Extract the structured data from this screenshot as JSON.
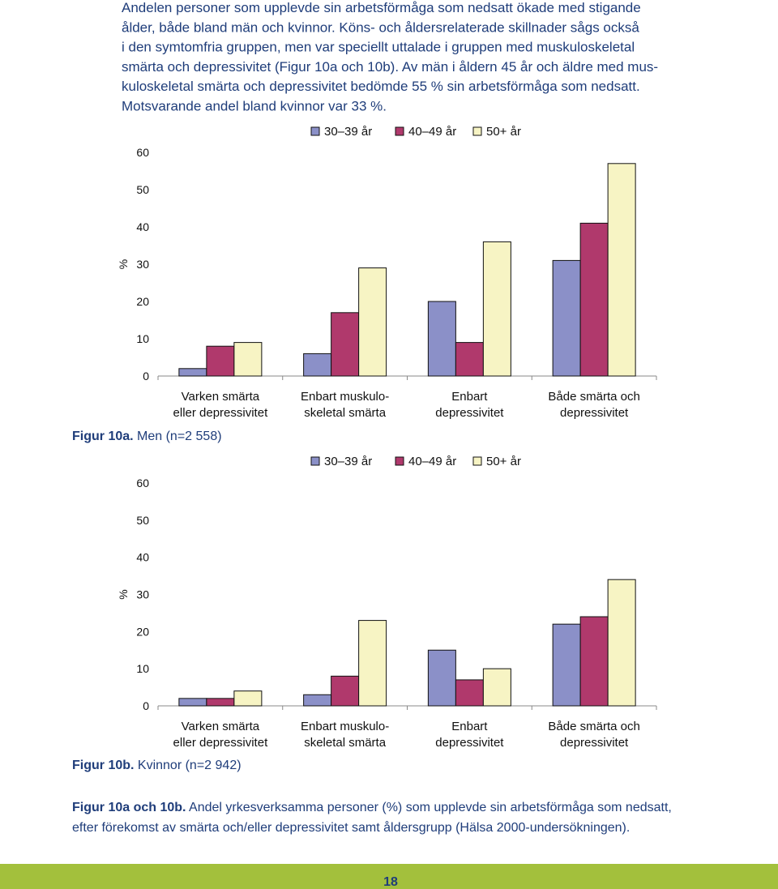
{
  "body": {
    "lines": [
      "Andelen personer som upplevde sin arbetsförmåga som nedsatt ökade med stigande",
      "ålder, både bland män och kvinnor. Köns- och åldersrelaterade skillnader sågs också",
      "i den symtomfria gruppen, men var speciellt uttalade i gruppen med muskuloskeletal",
      "smärta och depressivitet (Figur 10a och 10b). Av män i åldern 45 år och äldre med mus-",
      "kuloskeletal smärta och depressivitet bedömde 55 % sin arbetsförmåga som nedsatt.",
      "Motsvarande andel bland kvinnor var 33 %."
    ]
  },
  "chart_data": [
    {
      "type": "bar",
      "ylabel": "%",
      "ylim": [
        0,
        60
      ],
      "yticks": [
        0,
        10,
        20,
        30,
        40,
        50,
        60
      ],
      "categories": [
        [
          "Varken smärta",
          "eller depressivitet"
        ],
        [
          "Enbart muskulo-",
          "skeletal smärta"
        ],
        [
          "Enbart",
          "depressivitet"
        ],
        [
          "Både smärta och",
          "depressivitet"
        ]
      ],
      "series": [
        {
          "name": "30–39 år",
          "color": "#8b90c8",
          "values": [
            2,
            6,
            20,
            31
          ]
        },
        {
          "name": "40–49 år",
          "color": "#b0396c",
          "values": [
            8,
            17,
            9,
            41
          ]
        },
        {
          "name": "50+ år",
          "color": "#f7f4c4",
          "values": [
            9,
            29,
            36,
            57
          ]
        }
      ],
      "caption_label": "Figur 10a.",
      "caption_text": "Men (n=2 558)"
    },
    {
      "type": "bar",
      "ylabel": "%",
      "ylim": [
        0,
        60
      ],
      "yticks": [
        0,
        10,
        20,
        30,
        40,
        50,
        60
      ],
      "categories": [
        [
          "Varken smärta",
          "eller depressivitet"
        ],
        [
          "Enbart muskulo-",
          "skeletal smärta"
        ],
        [
          "Enbart",
          "depressivitet"
        ],
        [
          "Både smärta och",
          "depressivitet"
        ]
      ],
      "series": [
        {
          "name": "30–39 år",
          "color": "#8b90c8",
          "values": [
            2,
            3,
            15,
            22
          ]
        },
        {
          "name": "40–49 år",
          "color": "#b0396c",
          "values": [
            2,
            8,
            7,
            24
          ]
        },
        {
          "name": "50+ år",
          "color": "#f7f4c4",
          "values": [
            4,
            23,
            10,
            34
          ]
        }
      ],
      "caption_label": "Figur 10b.",
      "caption_text": "Kvinnor (n=2 942)"
    }
  ],
  "caption": {
    "label": "Figur 10a och 10b.",
    "lines": [
      "Andel yrkesverksamma personer (%) som upplevde sin arbetsförmåga som nedsatt,",
      "efter förekomst av smärta och/eller depressivitet samt åldersgrupp (Hälsa 2000-undersökningen)."
    ]
  },
  "footer": {
    "page_number": "18"
  }
}
